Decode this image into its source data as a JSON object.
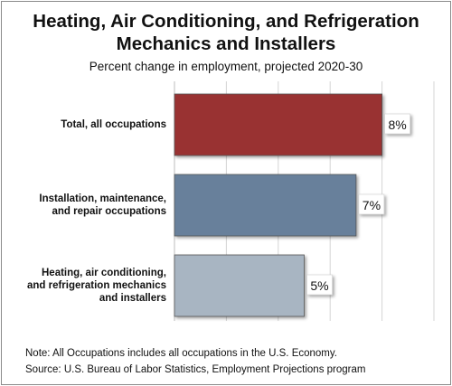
{
  "chart_data": {
    "type": "bar",
    "orientation": "horizontal",
    "title": [
      "Heating, Air Conditioning, and Refrigeration",
      "Mechanics and Installers"
    ],
    "subtitle": "Percent change in employment, projected 2020-30",
    "categories": [
      [
        "Total, all occupations"
      ],
      [
        "Installation, maintenance,",
        "and repair occupations"
      ],
      [
        "Heating, air conditioning,",
        "and refrigeration mechanics",
        "and installers"
      ]
    ],
    "values": [
      8,
      7,
      5
    ],
    "data_labels": [
      "8%",
      "7%",
      "5%"
    ],
    "colors": [
      "#993333",
      "#67809b",
      "#a8b5c2"
    ],
    "xlim": [
      0,
      10
    ],
    "grid": true,
    "legend": "none"
  },
  "notes": {
    "note": "Note: All Occupations includes all occupations in the U.S. Economy.",
    "source": "Source: U.S. Bureau of Labor Statistics, Employment Projections program"
  }
}
